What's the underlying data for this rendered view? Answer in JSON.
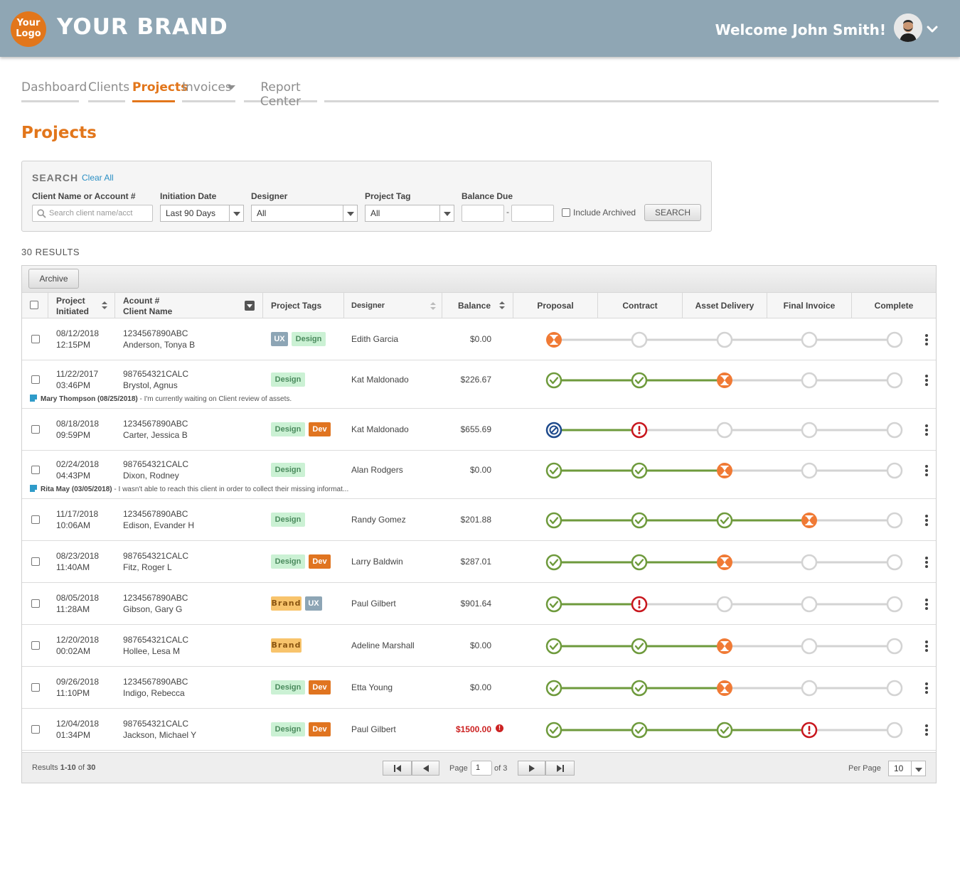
{
  "header": {
    "logo_text": "Your Logo",
    "brand": "YOUR BRAND",
    "welcome": "Welcome John Smith!"
  },
  "nav": {
    "tabs": [
      {
        "label": "Dashboard",
        "active": false
      },
      {
        "label": "Clients",
        "active": false
      },
      {
        "label": "Projects",
        "active": true
      },
      {
        "label": "Invoices",
        "active": false,
        "has_dropdown": true
      },
      {
        "label": "Report Center",
        "active": false
      }
    ]
  },
  "page_title": "Projects",
  "search": {
    "title": "SEARCH",
    "clear_all": "Clear All",
    "client_label": "Client Name or Account #",
    "client_placeholder": "Search client name/acct",
    "initiation_label": "Initiation Date",
    "initiation_value": "Last 90 Days",
    "designer_label": "Designer",
    "designer_value": "All",
    "tag_label": "Project Tag",
    "tag_value": "All",
    "balance_label": "Balance Due",
    "balance_sep": "-",
    "include_archived": "Include Archived",
    "search_button": "SEARCH"
  },
  "results_label": "30 RESULTS",
  "table": {
    "archive_button": "Archive",
    "columns": {
      "initiated": [
        "Project",
        "Initiated"
      ],
      "account": [
        "Acount #",
        "Client Name"
      ],
      "tags": "Project Tags",
      "designer": "Designer",
      "balance": "Balance",
      "stages": [
        "Proposal",
        "Contract",
        "Asset Delivery",
        "Final Invoice",
        "Complete"
      ]
    },
    "rows": [
      {
        "date": "08/12/2018",
        "time": "12:15PM",
        "account": "1234567890ABC",
        "client": "Anderson, Tonya B",
        "tags": [
          "UX",
          "Design"
        ],
        "designer": "Edith Garcia",
        "balance": "$0.00",
        "stages": [
          "pending",
          "empty",
          "empty",
          "empty",
          "empty"
        ]
      },
      {
        "date": "11/22/2017",
        "time": "03:46PM",
        "account": "987654321CALC",
        "client": "Brystol, Agnus",
        "tags": [
          "Design"
        ],
        "designer": "Kat Maldonado",
        "balance": "$226.67",
        "stages": [
          "done",
          "done",
          "pending",
          "empty",
          "empty"
        ],
        "note": {
          "author": "Mary Thompson (08/25/2018)",
          "text": " - I'm currently waiting on Client review of assets."
        }
      },
      {
        "date": "08/18/2018",
        "time": "09:59PM",
        "account": "1234567890ABC",
        "client": "Carter, Jessica B",
        "tags": [
          "Design",
          "Dev"
        ],
        "designer": "Kat Maldonado",
        "balance": "$655.69",
        "stages": [
          "blocked",
          "alert",
          "empty",
          "empty",
          "empty"
        ]
      },
      {
        "date": "02/24/2018",
        "time": "04:43PM",
        "account": "987654321CALC",
        "client": "Dixon, Rodney",
        "tags": [
          "Design"
        ],
        "designer": "Alan Rodgers",
        "balance": "$0.00",
        "stages": [
          "done",
          "done",
          "pending",
          "empty",
          "empty"
        ],
        "note": {
          "author": "Rita May (03/05/2018)",
          "text": " - I wasn't able to reach this client in order to collect their missing informat..."
        }
      },
      {
        "date": "11/17/2018",
        "time": "10:06AM",
        "account": "1234567890ABC",
        "client": "Edison, Evander H",
        "tags": [
          "Design"
        ],
        "designer": "Randy Gomez",
        "balance": "$201.88",
        "stages": [
          "done",
          "done",
          "done",
          "pending",
          "empty"
        ]
      },
      {
        "date": "08/23/2018",
        "time": "11:40AM",
        "account": "987654321CALC",
        "client": "Fitz, Roger L",
        "tags": [
          "Design",
          "Dev"
        ],
        "designer": "Larry Baldwin",
        "balance": "$287.01",
        "stages": [
          "done",
          "done",
          "pending",
          "empty",
          "empty"
        ]
      },
      {
        "date": "08/05/2018",
        "time": "11:28AM",
        "account": "1234567890ABC",
        "client": "Gibson, Gary G",
        "tags": [
          "Brand",
          "UX"
        ],
        "designer": "Paul Gilbert",
        "balance": "$901.64",
        "stages": [
          "done",
          "alert",
          "empty",
          "empty",
          "empty"
        ]
      },
      {
        "date": "12/20/2018",
        "time": "00:02AM",
        "account": "987654321CALC",
        "client": "Hollee, Lesa M",
        "tags": [
          "Brand"
        ],
        "designer": "Adeline Marshall",
        "balance": "$0.00",
        "stages": [
          "done",
          "done",
          "pending",
          "empty",
          "empty"
        ]
      },
      {
        "date": "09/26/2018",
        "time": "11:10PM",
        "account": "1234567890ABC",
        "client": "Indigo, Rebecca",
        "tags": [
          "Design",
          "Dev"
        ],
        "designer": "Etta Young",
        "balance": "$0.00",
        "stages": [
          "done",
          "done",
          "pending",
          "empty",
          "empty"
        ]
      },
      {
        "date": "12/04/2018",
        "time": "01:34PM",
        "account": "987654321CALC",
        "client": "Jackson, Michael Y",
        "tags": [
          "Design",
          "Dev"
        ],
        "designer": "Paul Gilbert",
        "balance": "$1500.00",
        "balance_overdue": true,
        "stages": [
          "done",
          "done",
          "done",
          "alert",
          "empty"
        ]
      }
    ],
    "footer": {
      "results_prefix": "Results ",
      "results_range": "1-10",
      "results_of": " of ",
      "results_total": "30",
      "page_label": "Page",
      "page_value": "1",
      "page_of": "of 3",
      "per_page_label": "Per Page",
      "per_page_value": "10"
    }
  },
  "colors": {
    "header_bg": "#8fa6b4",
    "accent": "#e2761b",
    "done": "#6e9a3c",
    "alert": "#c8161d",
    "blocked": "#1e4a8c",
    "empty": "#d3d3d3",
    "link": "#2a8fc4"
  },
  "icons": {
    "user_menu": "chevron-down-icon",
    "search": "search-icon",
    "stage_done": "check-circle-icon",
    "stage_pending": "hourglass-icon",
    "stage_alert": "exclamation-circle-icon",
    "stage_blocked": "blocked-circle-icon",
    "stage_empty": "empty-circle-icon",
    "row_menu": "kebab-icon",
    "note": "note-icon"
  }
}
